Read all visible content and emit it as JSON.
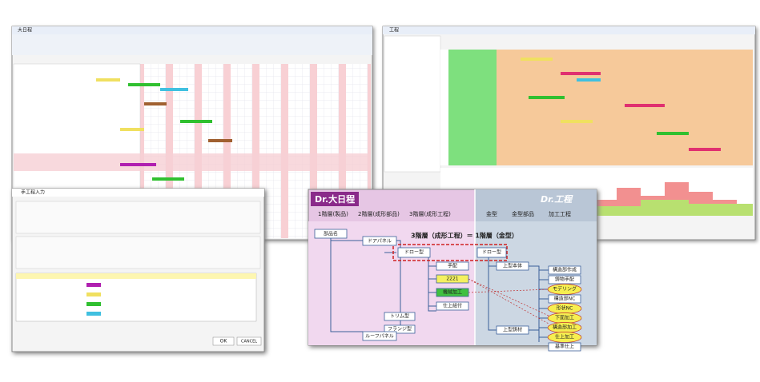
{
  "windows": {
    "schedule_title": "大日程",
    "process_title": "工程",
    "dialog_title": "手工程入力",
    "dialog_ok": "OK",
    "dialog_cancel": "CANCEL"
  },
  "diagram": {
    "logo_left": "Dr.大日程",
    "logo_right": "Dr.工程",
    "levels": [
      "1階層(製品)",
      "2階層(成形部品)",
      "3階層(成形工程)",
      "金型",
      "金型部品",
      "加工工程"
    ],
    "equation": "3階層（成形工程）＝ 1階層（金型）",
    "nodes": [
      "部品名",
      "ドアパネル",
      "ドロー型",
      "ドロー型",
      "手配",
      "2221",
      "機械加工",
      "仕上組付",
      "トリム型",
      "フランジ型",
      "ルーフパネル",
      "上型本体",
      "上型鋳材"
    ],
    "steps": [
      "構造部作成",
      "鋳物手配",
      "モデリング",
      "構造部NC",
      "形状NC",
      "下面加工",
      "構造部加工",
      "仕上加工",
      "基準仕上"
    ]
  }
}
